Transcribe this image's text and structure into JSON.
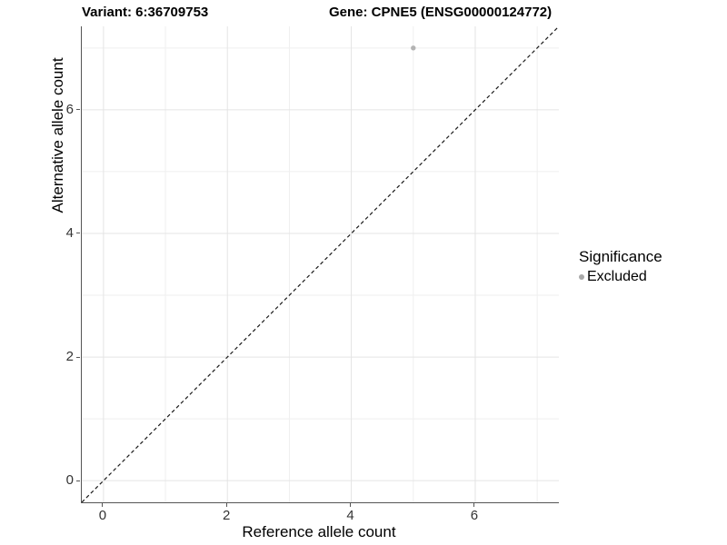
{
  "chart_data": {
    "type": "scatter",
    "title_left": "Variant: 6:36709753",
    "title_right": "Gene: CPNE5 (ENSG00000124772)",
    "xlabel": "Reference allele count",
    "ylabel": "Alternative allele count",
    "xlim": [
      -0.35,
      7.35
    ],
    "ylim": [
      -0.35,
      7.35
    ],
    "x_ticks": [
      0,
      2,
      4,
      6
    ],
    "y_ticks": [
      0,
      2,
      4,
      6
    ],
    "x_minor_ticks": [
      1,
      3,
      5,
      7
    ],
    "y_minor_ticks": [
      1,
      3,
      5,
      7
    ],
    "grid": "on",
    "points": [
      {
        "x": 5,
        "y": 7,
        "series": "Excluded"
      }
    ],
    "abline": {
      "slope": 1,
      "intercept": 0,
      "style": "dashed",
      "color": "#1a1a1a"
    },
    "legend": {
      "position": "right",
      "title": "Significance",
      "entries": [
        {
          "label": "Excluded",
          "color": "#a8a8a8"
        }
      ]
    },
    "colors": {
      "point_excluded": "#b3b3b3",
      "grid_major": "#e4e4e4",
      "grid_minor": "#efefef",
      "axis_line": "#555555",
      "tick_text": "#333333",
      "background": "#ffffff"
    }
  }
}
